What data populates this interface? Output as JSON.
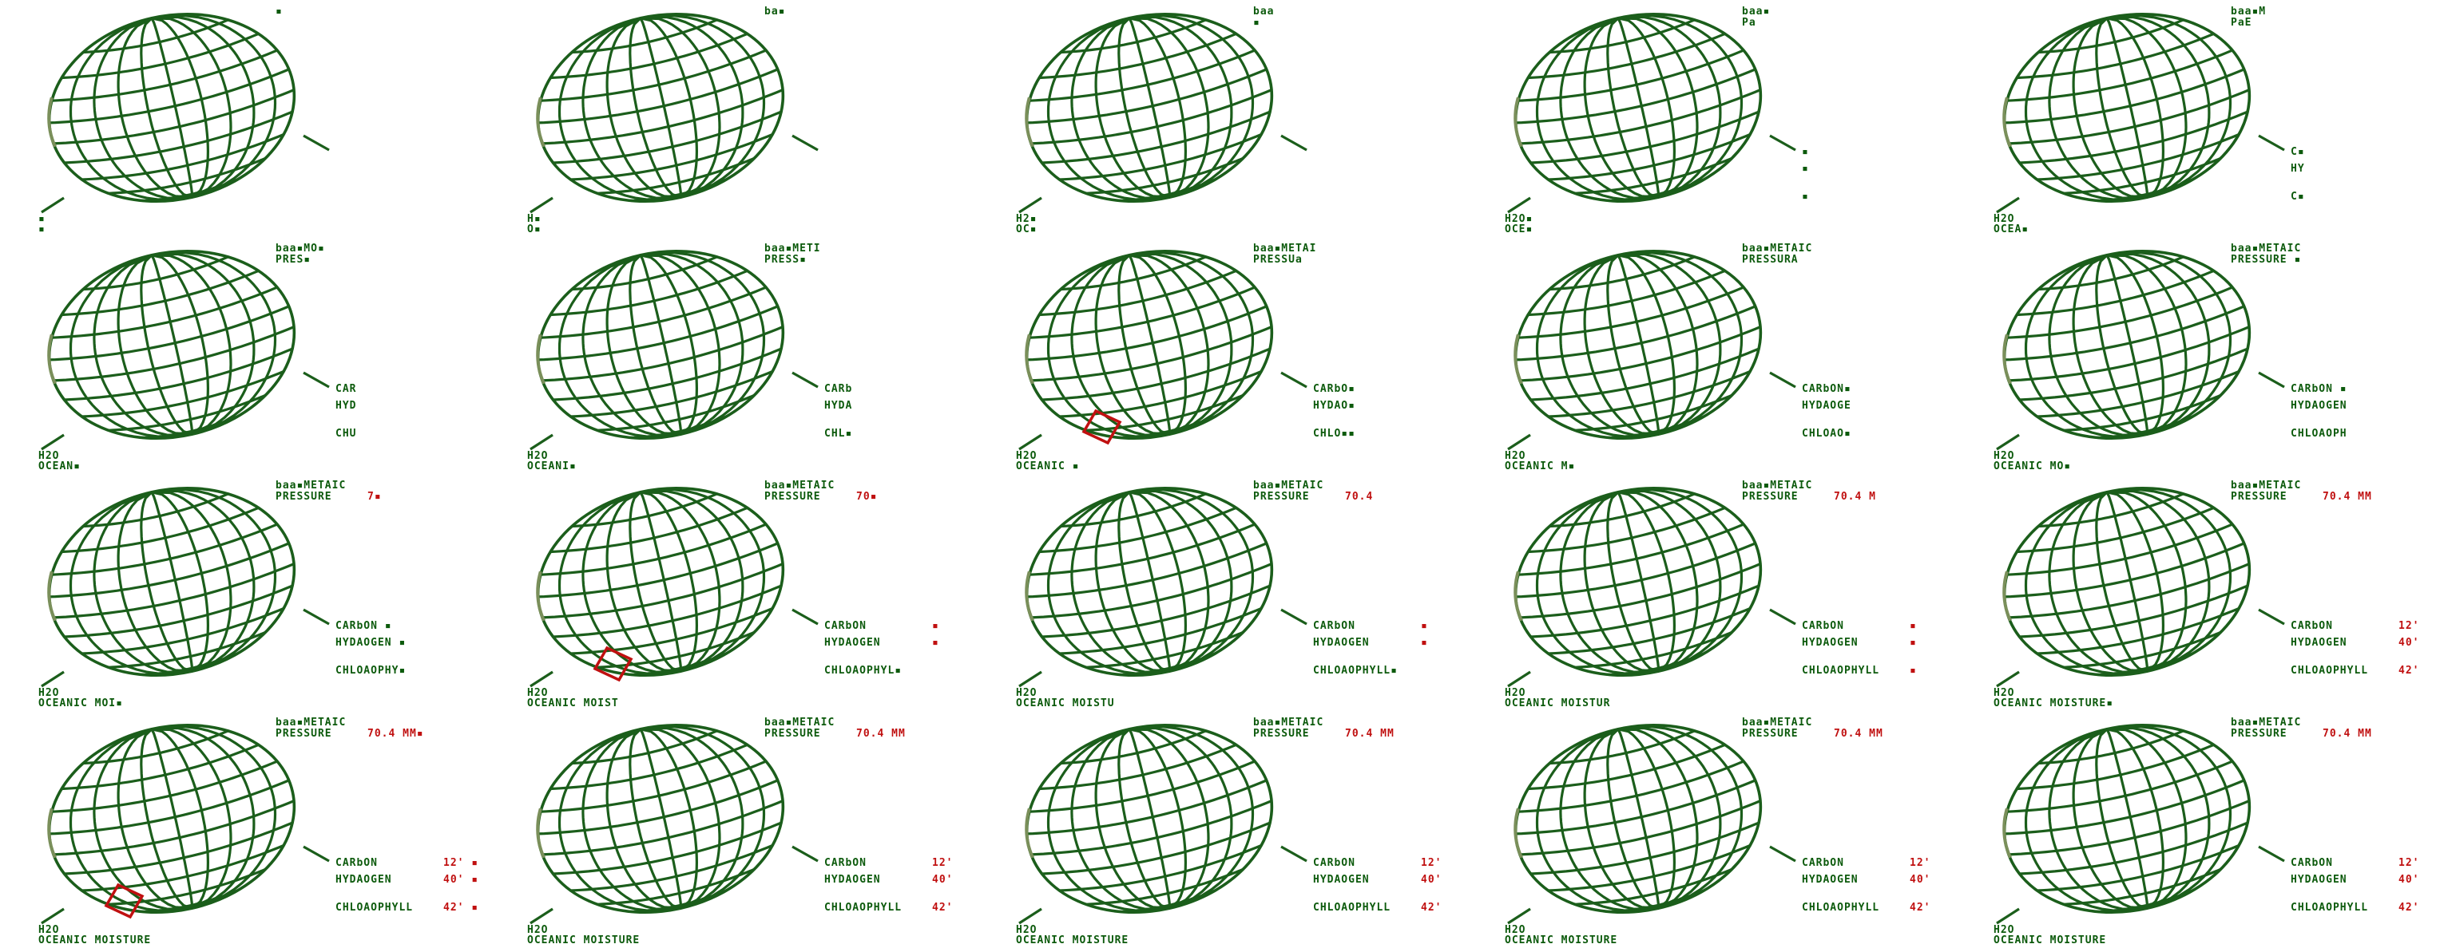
{
  "colors": {
    "grid": "#1b5e1b",
    "grid_light": "#7a8f5a",
    "label": "#0c5a0c",
    "highlight": "#c01010",
    "background": "#ffffff"
  },
  "frames": [
    {
      "baro": "▪",
      "pressure": "",
      "pressure_value": "",
      "carbon": "",
      "carbon_value": "",
      "hydrogen": "",
      "hydrogen_value": "",
      "chloro": "",
      "chloro_value": "",
      "h2o": "▪",
      "oceanic": "▪",
      "highlight": false
    },
    {
      "baro": "ba▪",
      "pressure": "",
      "pressure_value": "",
      "carbon": "",
      "carbon_value": "",
      "hydrogen": "",
      "hydrogen_value": "",
      "chloro": "",
      "chloro_value": "",
      "h2o": "H▪",
      "oceanic": "O▪",
      "highlight": false
    },
    {
      "baro": "baa",
      "pressure": "▪",
      "pressure_value": "",
      "carbon": "",
      "carbon_value": "",
      "hydrogen": "",
      "hydrogen_value": "",
      "chloro": "",
      "chloro_value": "",
      "h2o": "H2▪",
      "oceanic": "OC▪",
      "highlight": false
    },
    {
      "baro": "baa▪",
      "pressure": "Pa",
      "pressure_value": "",
      "carbon": "▪",
      "carbon_value": "",
      "hydrogen": "▪",
      "hydrogen_value": "",
      "chloro": "▪",
      "chloro_value": "",
      "h2o": "H2O▪",
      "oceanic": "OCE▪",
      "highlight": false
    },
    {
      "baro": "baa▪M",
      "pressure": "PaE",
      "pressure_value": "",
      "carbon": "C▪",
      "carbon_value": "",
      "hydrogen": "HY",
      "hydrogen_value": "",
      "chloro": "C▪",
      "chloro_value": "",
      "h2o": "H2O",
      "oceanic": "OCEA▪",
      "highlight": false
    },
    {
      "baro": "baa▪MO▪",
      "pressure": "PRES▪",
      "pressure_value": "",
      "carbon": "CAR",
      "carbon_value": "",
      "hydrogen": "HYD",
      "hydrogen_value": "",
      "chloro": "CHU",
      "chloro_value": "",
      "h2o": "H2O",
      "oceanic": "OCEAN▪",
      "highlight": false
    },
    {
      "baro": "baa▪METI",
      "pressure": "PRESS▪",
      "pressure_value": "",
      "carbon": "CARb",
      "carbon_value": "",
      "hydrogen": "HYDA",
      "hydrogen_value": "",
      "chloro": "CHL▪",
      "chloro_value": "",
      "h2o": "H2O",
      "oceanic": "OCEANI▪",
      "highlight": false
    },
    {
      "baro": "baa▪METAI",
      "pressure": "PRESSUa",
      "pressure_value": "",
      "carbon": "CARbO▪",
      "carbon_value": "",
      "hydrogen": "HYDAO▪",
      "hydrogen_value": "",
      "chloro": "CHLO▪▪",
      "chloro_value": "",
      "h2o": "H2O",
      "oceanic": "OCEANIC ▪",
      "highlight": true
    },
    {
      "baro": "baa▪METAIC",
      "pressure": "PRESSURA",
      "pressure_value": "",
      "carbon": "CARbON▪",
      "carbon_value": "",
      "hydrogen": "HYDAOGE",
      "hydrogen_value": "",
      "chloro": "CHLOAO▪",
      "chloro_value": "",
      "h2o": "H2O",
      "oceanic": "OCEANIC M▪",
      "highlight": false
    },
    {
      "baro": "baa▪METAIC",
      "pressure": "PRESSURE ▪",
      "pressure_value": "",
      "carbon": "CARbON ▪",
      "carbon_value": "",
      "hydrogen": "HYDAOGEN",
      "hydrogen_value": "",
      "chloro": "CHLOAOPH",
      "chloro_value": "",
      "h2o": "H2O",
      "oceanic": "OCEANIC MO▪",
      "highlight": false
    },
    {
      "baro": "baa▪METAIC",
      "pressure": "PRESSURE",
      "pressure_value": "7▪",
      "carbon": "CARbON ▪",
      "carbon_value": "",
      "hydrogen": "HYDAOGEN ▪",
      "hydrogen_value": "",
      "chloro": "CHLOAOPHY▪",
      "chloro_value": "",
      "h2o": "H2O",
      "oceanic": "OCEANIC MOI▪",
      "highlight": false
    },
    {
      "baro": "baa▪METAIC",
      "pressure": "PRESSURE",
      "pressure_value": "70▪",
      "carbon": "CARbON",
      "carbon_value": "▪",
      "hydrogen": "HYDAOGEN",
      "hydrogen_value": "▪",
      "chloro": "CHLOAOPHYL▪",
      "chloro_value": "",
      "h2o": "H2O",
      "oceanic": "OCEANIC MOIST",
      "highlight": true
    },
    {
      "baro": "baa▪METAIC",
      "pressure": "PRESSURE",
      "pressure_value": "70.4",
      "carbon": "CARbON",
      "carbon_value": "▪",
      "hydrogen": "HYDAOGEN",
      "hydrogen_value": "▪",
      "chloro": "CHLOAOPHYLL▪",
      "chloro_value": "",
      "h2o": "H2O",
      "oceanic": "OCEANIC MOISTU",
      "highlight": false
    },
    {
      "baro": "baa▪METAIC",
      "pressure": "PRESSURE",
      "pressure_value": "70.4 M",
      "carbon": "CARbON",
      "carbon_value": "▪",
      "hydrogen": "HYDAOGEN",
      "hydrogen_value": "▪",
      "chloro": "CHLOAOPHYLL",
      "chloro_value": "▪",
      "h2o": "H2O",
      "oceanic": "OCEANIC MOISTUR",
      "highlight": false
    },
    {
      "baro": "baa▪METAIC",
      "pressure": "PRESSURE",
      "pressure_value": "70.4 MM",
      "carbon": "CARbON",
      "carbon_value": "12'",
      "hydrogen": "HYDAOGEN",
      "hydrogen_value": "40'",
      "chloro": "CHLOAOPHYLL",
      "chloro_value": "42'",
      "h2o": "H2O",
      "oceanic": "OCEANIC MOISTURE▪",
      "highlight": false
    },
    {
      "baro": "baa▪METAIC",
      "pressure": "PRESSURE",
      "pressure_value": "70.4 MM▪",
      "carbon": "CARbON",
      "carbon_value": "12' ▪",
      "hydrogen": "HYDAOGEN",
      "hydrogen_value": "40' ▪",
      "chloro": "CHLOAOPHYLL",
      "chloro_value": "42' ▪",
      "h2o": "H2O",
      "oceanic": "OCEANIC MOISTURE",
      "highlight": true
    },
    {
      "baro": "baa▪METAIC",
      "pressure": "PRESSURE",
      "pressure_value": "70.4 MM",
      "carbon": "CARbON",
      "carbon_value": "12'",
      "hydrogen": "HYDAOGEN",
      "hydrogen_value": "40'",
      "chloro": "CHLOAOPHYLL",
      "chloro_value": "42'",
      "h2o": "H2O",
      "oceanic": "OCEANIC MOISTURE",
      "highlight": false
    },
    {
      "baro": "baa▪METAIC",
      "pressure": "PRESSURE",
      "pressure_value": "70.4 MM",
      "carbon": "CARbON",
      "carbon_value": "12'",
      "hydrogen": "HYDAOGEN",
      "hydrogen_value": "40'",
      "chloro": "CHLOAOPHYLL",
      "chloro_value": "42'",
      "h2o": "H2O",
      "oceanic": "OCEANIC MOISTURE",
      "highlight": false
    },
    {
      "baro": "baa▪METAIC",
      "pressure": "PRESSURE",
      "pressure_value": "70.4 MM",
      "carbon": "CARbON",
      "carbon_value": "12'",
      "hydrogen": "HYDAOGEN",
      "hydrogen_value": "40'",
      "chloro": "CHLOAOPHYLL",
      "chloro_value": "42'",
      "h2o": "H2O",
      "oceanic": "OCEANIC MOISTURE",
      "highlight": false
    },
    {
      "baro": "baa▪METAIC",
      "pressure": "PRESSURE",
      "pressure_value": "70.4 MM",
      "carbon": "CARbON",
      "carbon_value": "12'",
      "hydrogen": "HYDAOGEN",
      "hydrogen_value": "40'",
      "chloro": "CHLOAOPHYLL",
      "chloro_value": "42'",
      "h2o": "H2O",
      "oceanic": "OCEANIC MOISTURE",
      "highlight": false
    }
  ]
}
